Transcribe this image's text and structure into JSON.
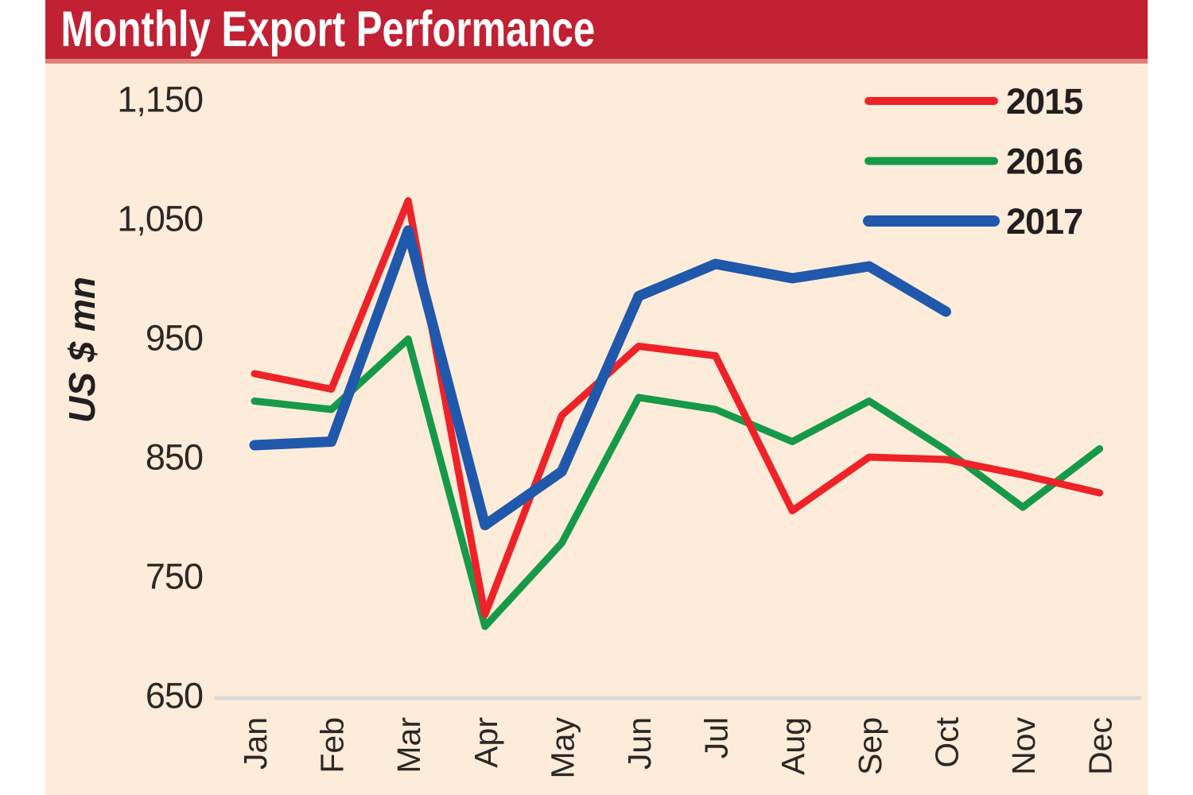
{
  "title": "Monthly Export Performance",
  "colors": {
    "title_bar_bg": "#c22033",
    "title_bar_strip": "#dd837b",
    "title_text": "#ffffff",
    "chart_bg": "#fdecd9",
    "axis_line": "#d9d9d9",
    "text": "#2b2826",
    "series_2015": "#ee2228",
    "series_2016": "#169a4a",
    "series_2017": "#2058ac"
  },
  "chart_data": {
    "type": "line",
    "title": "Monthly Export Performance",
    "ylabel": "US $ mn",
    "xlabel": "",
    "categories": [
      "Jan",
      "Feb",
      "Mar",
      "Apr",
      "May",
      "Jun",
      "Jul",
      "Aug",
      "Sep",
      "Oct",
      "Nov",
      "Dec"
    ],
    "series": [
      {
        "name": "2015",
        "color": "#ee2228",
        "stroke_width": 9,
        "z": 2,
        "values": [
          920,
          907,
          1065,
          718,
          885,
          943,
          935,
          805,
          850,
          848,
          835,
          820
        ]
      },
      {
        "name": "2016",
        "color": "#169a4a",
        "stroke_width": 9,
        "z": 1,
        "values": [
          897,
          890,
          949,
          708,
          778,
          900,
          890,
          863,
          897,
          856,
          808,
          857
        ]
      },
      {
        "name": "2017",
        "color": "#2058ac",
        "stroke_width": 13,
        "z": 3,
        "values": [
          860,
          863,
          1040,
          793,
          838,
          985,
          1012,
          1000,
          1010,
          972
        ]
      }
    ],
    "ylim": [
      650,
      1150
    ],
    "y_ticks": [
      1150,
      1050,
      950,
      850,
      750,
      650
    ],
    "y_tick_labels": [
      "1,150",
      "1,050",
      "950",
      "850",
      "750",
      "650"
    ],
    "grid": false,
    "legend_position": "top-right"
  }
}
